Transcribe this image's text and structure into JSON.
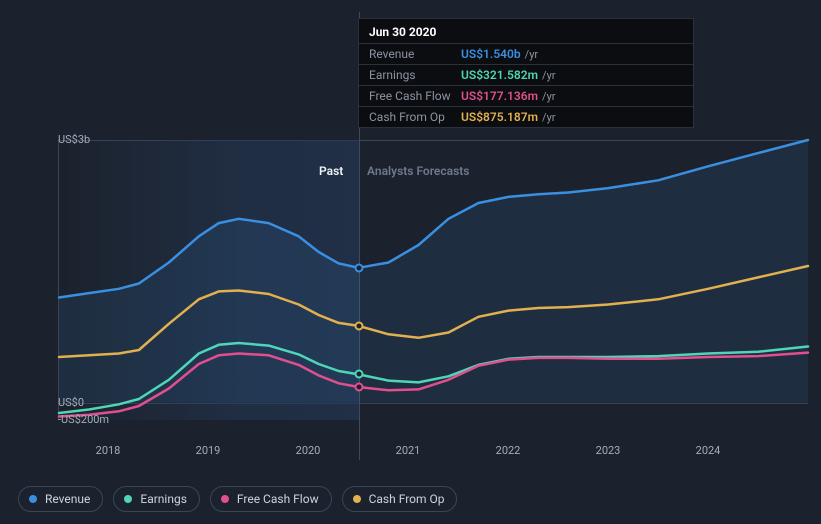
{
  "chart": {
    "type": "line-area",
    "background_color": "#1b222d",
    "grid_color": "#3a4556",
    "text_color": "#a4adbb",
    "line_width": 2.5,
    "x": {
      "min": 2017.5,
      "max": 2025.0,
      "ticks": [
        2018,
        2019,
        2020,
        2021,
        2022,
        2023,
        2024
      ],
      "divider": 2020.5,
      "past_label": "Past",
      "forecast_label": "Analysts Forecasts",
      "label_fontsize": 11
    },
    "y": {
      "min": -200,
      "max": 3000,
      "unit_prefix": "US$",
      "labels": [
        {
          "value": 3000,
          "text": "US$3b"
        },
        {
          "value": 0,
          "text": "US$0"
        },
        {
          "value": -200,
          "text": "-US$200m"
        }
      ],
      "label_fontsize": 11
    },
    "series": {
      "revenue": {
        "label": "Revenue",
        "color": "#3a8fe0",
        "fill_opacity": 0.1,
        "points": [
          [
            2017.5,
            1200
          ],
          [
            2017.8,
            1250
          ],
          [
            2018.1,
            1300
          ],
          [
            2018.3,
            1360
          ],
          [
            2018.6,
            1600
          ],
          [
            2018.9,
            1900
          ],
          [
            2019.1,
            2050
          ],
          [
            2019.3,
            2100
          ],
          [
            2019.6,
            2050
          ],
          [
            2019.9,
            1900
          ],
          [
            2020.1,
            1720
          ],
          [
            2020.3,
            1590
          ],
          [
            2020.5,
            1540
          ],
          [
            2020.8,
            1600
          ],
          [
            2021.1,
            1800
          ],
          [
            2021.4,
            2100
          ],
          [
            2021.7,
            2280
          ],
          [
            2022.0,
            2350
          ],
          [
            2022.3,
            2380
          ],
          [
            2022.6,
            2400
          ],
          [
            2023.0,
            2450
          ],
          [
            2023.5,
            2540
          ],
          [
            2024.0,
            2700
          ],
          [
            2024.5,
            2850
          ],
          [
            2025.0,
            3000
          ]
        ]
      },
      "cash_from_op": {
        "label": "Cash From Op",
        "color": "#e1b04f",
        "fill_opacity": 0.0,
        "points": [
          [
            2017.5,
            520
          ],
          [
            2017.8,
            540
          ],
          [
            2018.1,
            560
          ],
          [
            2018.3,
            600
          ],
          [
            2018.6,
            900
          ],
          [
            2018.9,
            1180
          ],
          [
            2019.1,
            1270
          ],
          [
            2019.3,
            1280
          ],
          [
            2019.6,
            1240
          ],
          [
            2019.9,
            1120
          ],
          [
            2020.1,
            1000
          ],
          [
            2020.3,
            910
          ],
          [
            2020.5,
            875
          ],
          [
            2020.8,
            780
          ],
          [
            2021.1,
            740
          ],
          [
            2021.4,
            800
          ],
          [
            2021.7,
            980
          ],
          [
            2022.0,
            1050
          ],
          [
            2022.3,
            1080
          ],
          [
            2022.6,
            1090
          ],
          [
            2023.0,
            1120
          ],
          [
            2023.5,
            1180
          ],
          [
            2024.0,
            1300
          ],
          [
            2024.5,
            1430
          ],
          [
            2025.0,
            1560
          ]
        ]
      },
      "earnings": {
        "label": "Earnings",
        "color": "#4fd6b8",
        "fill_opacity": 0.0,
        "points": [
          [
            2017.5,
            -120
          ],
          [
            2017.8,
            -80
          ],
          [
            2018.1,
            -20
          ],
          [
            2018.3,
            40
          ],
          [
            2018.6,
            260
          ],
          [
            2018.9,
            560
          ],
          [
            2019.1,
            660
          ],
          [
            2019.3,
            680
          ],
          [
            2019.6,
            650
          ],
          [
            2019.9,
            550
          ],
          [
            2020.1,
            440
          ],
          [
            2020.3,
            360
          ],
          [
            2020.5,
            321
          ],
          [
            2020.8,
            250
          ],
          [
            2021.1,
            230
          ],
          [
            2021.4,
            300
          ],
          [
            2021.7,
            430
          ],
          [
            2022.0,
            500
          ],
          [
            2022.3,
            520
          ],
          [
            2022.6,
            520
          ],
          [
            2023.0,
            520
          ],
          [
            2023.5,
            530
          ],
          [
            2024.0,
            560
          ],
          [
            2024.5,
            580
          ],
          [
            2025.0,
            640
          ]
        ]
      },
      "free_cash_flow": {
        "label": "Free Cash Flow",
        "color": "#e14f8f",
        "fill_opacity": 0.0,
        "points": [
          [
            2017.5,
            -160
          ],
          [
            2017.8,
            -140
          ],
          [
            2018.1,
            -100
          ],
          [
            2018.3,
            -40
          ],
          [
            2018.6,
            160
          ],
          [
            2018.9,
            440
          ],
          [
            2019.1,
            540
          ],
          [
            2019.3,
            560
          ],
          [
            2019.6,
            540
          ],
          [
            2019.9,
            430
          ],
          [
            2020.1,
            310
          ],
          [
            2020.3,
            220
          ],
          [
            2020.5,
            177
          ],
          [
            2020.8,
            140
          ],
          [
            2021.1,
            150
          ],
          [
            2021.4,
            260
          ],
          [
            2021.7,
            420
          ],
          [
            2022.0,
            490
          ],
          [
            2022.3,
            510
          ],
          [
            2022.6,
            510
          ],
          [
            2023.0,
            500
          ],
          [
            2023.5,
            500
          ],
          [
            2024.0,
            520
          ],
          [
            2024.5,
            530
          ],
          [
            2025.0,
            570
          ]
        ]
      }
    },
    "markers_at_divider": [
      "revenue",
      "cash_from_op",
      "earnings",
      "free_cash_flow"
    ]
  },
  "tooltip": {
    "title": "Jun 30 2020",
    "unit_suffix": "/yr",
    "rows": [
      {
        "key": "Revenue",
        "value": "US$1.540b",
        "color": "#3a8fe0"
      },
      {
        "key": "Earnings",
        "value": "US$321.582m",
        "color": "#4fd6b8"
      },
      {
        "key": "Free Cash Flow",
        "value": "US$177.136m",
        "color": "#e14f8f"
      },
      {
        "key": "Cash From Op",
        "value": "US$875.187m",
        "color": "#e1b04f"
      }
    ]
  },
  "legend": {
    "items": [
      {
        "key": "revenue",
        "label": "Revenue",
        "color": "#3a8fe0"
      },
      {
        "key": "earnings",
        "label": "Earnings",
        "color": "#4fd6b8"
      },
      {
        "key": "free_cash_flow",
        "label": "Free Cash Flow",
        "color": "#e14f8f"
      },
      {
        "key": "cash_from_op",
        "label": "Cash From Op",
        "color": "#e1b04f"
      }
    ]
  }
}
